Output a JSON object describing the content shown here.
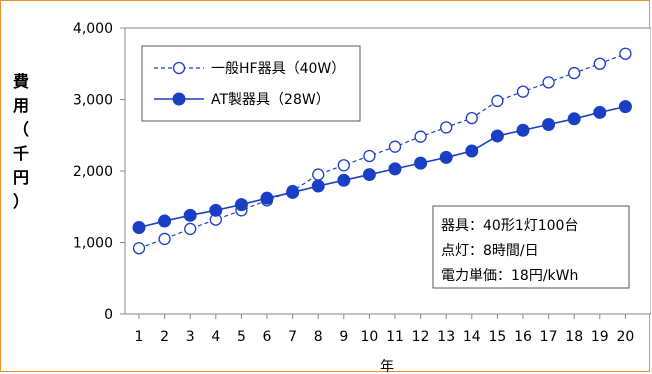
{
  "chart_data": {
    "type": "line",
    "xlabel": "年",
    "ylabel": "費用（千円）",
    "ylabel_chars": [
      "費",
      "用",
      "（",
      "千",
      "円",
      "）"
    ],
    "x": [
      1,
      2,
      3,
      4,
      5,
      6,
      7,
      8,
      9,
      10,
      11,
      12,
      13,
      14,
      15,
      16,
      17,
      18,
      19,
      20
    ],
    "ylim": [
      0,
      4000
    ],
    "yticks": [
      0,
      1000,
      2000,
      3000,
      4000
    ],
    "ytick_labels": [
      "0",
      "1,000",
      "2,000",
      "3,000",
      "4,000"
    ],
    "grid": false,
    "legend_position": "top-left",
    "series": [
      {
        "name": "一般HF器具（40W）",
        "style": "dashed-open-circle",
        "color": "#1b3fc4",
        "values": [
          920,
          1050,
          1190,
          1320,
          1450,
          1590,
          1720,
          1950,
          2080,
          2210,
          2340,
          2480,
          2610,
          2740,
          2980,
          3110,
          3240,
          3370,
          3500,
          3640
        ]
      },
      {
        "name": "AT製器具（28W）",
        "style": "solid-filled-circle",
        "color": "#1b3fc4",
        "values": [
          1210,
          1300,
          1380,
          1450,
          1530,
          1620,
          1700,
          1790,
          1870,
          1950,
          2030,
          2110,
          2190,
          2280,
          2490,
          2570,
          2650,
          2730,
          2820,
          2900
        ]
      }
    ],
    "annotation": [
      "器具：40形1灯100台",
      "点灯：8時間/日",
      "電力単価：18円/kWh"
    ]
  }
}
